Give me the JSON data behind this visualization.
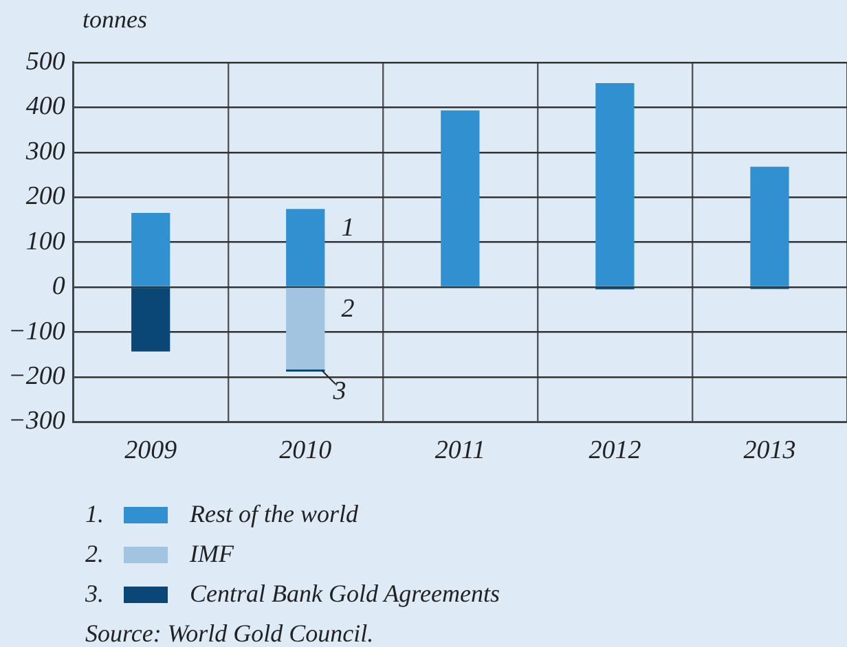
{
  "chart_data": {
    "type": "bar",
    "ylabel": "tonnes",
    "stacked": true,
    "categories": [
      "2009",
      "2010",
      "2011",
      "2012",
      "2013"
    ],
    "series": [
      {
        "name": "Rest of the world",
        "color": "#3090d0",
        "values": [
          165,
          174,
          393,
          454,
          268
        ]
      },
      {
        "name": "IMF",
        "color": "#a2c4e0",
        "values": [
          0,
          -183,
          0,
          0,
          0
        ]
      },
      {
        "name": "Central Bank Gold Agreements",
        "color": "#0a4676",
        "values": [
          -143,
          -5,
          0,
          -5,
          -4
        ]
      }
    ],
    "ylim": [
      -300,
      500
    ],
    "yticks": [
      {
        "value": -300,
        "label": "−300"
      },
      {
        "value": -200,
        "label": "−200"
      },
      {
        "value": -100,
        "label": "−100"
      },
      0,
      100,
      200,
      300,
      400,
      500
    ],
    "grid": true,
    "legend": "bottom",
    "annotations": [
      "1",
      "2",
      "3",
      "1.",
      "2.",
      "3.",
      "Source: World Gold Council."
    ]
  }
}
